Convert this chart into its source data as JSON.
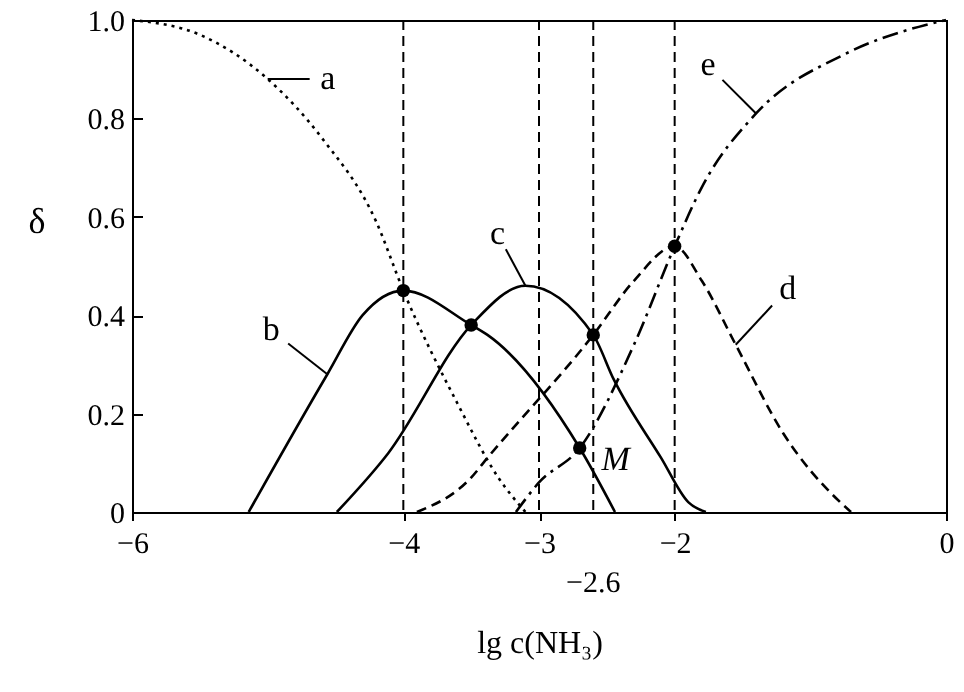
{
  "chart_data": {
    "type": "line",
    "xlabel": "lg c(NH₃)",
    "ylabel": "δ",
    "xlim": [
      -6,
      0
    ],
    "xticks": [
      -6,
      -4,
      -3,
      -2,
      0
    ],
    "ylim": [
      0,
      1
    ],
    "yticks": [
      0,
      0.2,
      0.4,
      0.6,
      0.8,
      {
        "value": 1,
        "label": "1.0"
      }
    ],
    "grid": false,
    "series": [
      {
        "color": "#000000",
        "line_style": "dotted",
        "marker": "none",
        "x": [
          -6,
          -5.5,
          -5,
          -4.6,
          -4.2,
          -4,
          -3.6,
          -3.3,
          -3.1
        ],
        "values": [
          1.0,
          0.97,
          0.88,
          0.76,
          0.59,
          0.45,
          0.22,
          0.07,
          0
        ]
      },
      {
        "color": "#000000",
        "line_style": "solid",
        "marker": "none",
        "x": [
          -5.14,
          -4.56,
          -4.3,
          -4,
          -3.5,
          -3.38,
          -2.7,
          -2.44
        ],
        "values": [
          0,
          0.28,
          0.4,
          0.45,
          0.38,
          0.36,
          0.13,
          0
        ]
      },
      {
        "color": "#000000",
        "line_style": "solid",
        "marker": "none",
        "x": [
          -4.49,
          -4.11,
          -3.5,
          -3.1,
          -2.6,
          -2.45,
          -2.1,
          -1.9,
          -1.77
        ],
        "values": [
          0,
          0.12,
          0.38,
          0.46,
          0.36,
          0.27,
          0.11,
          0.02,
          0
        ]
      },
      {
        "color": "#000000",
        "line_style": "dashed",
        "marker": "none",
        "x": [
          -3.9,
          -3.5,
          -3.38,
          -2.6,
          -2.3,
          -2,
          -1.8,
          -1.55,
          -1.2,
          -0.78,
          -0.7
        ],
        "values": [
          0,
          0.07,
          0.11,
          0.36,
          0.47,
          0.54,
          0.47,
          0.34,
          0.16,
          0.02,
          0
        ]
      },
      {
        "color": "#000000",
        "line_style": "dashdot",
        "marker": "none",
        "x": [
          -3.17,
          -3.0,
          -2.7,
          -2.3,
          -2,
          -1.8,
          -1.4,
          -0.75,
          -0.15,
          0
        ],
        "values": [
          0,
          0.06,
          0.13,
          0.34,
          0.54,
          0.66,
          0.81,
          0.93,
          0.99,
          1.0
        ]
      },
      {
        "type": "scatter",
        "color": "#000000",
        "marker": "circle",
        "x": [
          -4,
          -3.5,
          -2.6,
          -2.7,
          -2
        ],
        "values": [
          0.45,
          0.38,
          0.36,
          0.13,
          0.54
        ]
      }
    ],
    "ref_lines": [
      {
        "axis": "x",
        "value": -4,
        "line_style": "dashed",
        "color": "#000000"
      },
      {
        "axis": "x",
        "value": -3,
        "line_style": "dashed",
        "color": "#000000"
      },
      {
        "axis": "x",
        "value": -2.6,
        "line_style": "dashed",
        "color": "#000000",
        "label": "−2.6"
      },
      {
        "axis": "x",
        "value": -2,
        "line_style": "dashed",
        "color": "#000000"
      }
    ],
    "annotations": [
      {
        "text": "a",
        "x": -5.0,
        "y": 0.88
      },
      {
        "text": "b",
        "x": -4.56,
        "y": 0.28
      },
      {
        "text": "c",
        "x": -3.1,
        "y": 0.46
      },
      {
        "text": "d",
        "x": -1.55,
        "y": 0.34
      },
      {
        "text": "e",
        "x": -1.4,
        "y": 0.81
      },
      {
        "text": "M",
        "x": -2.7,
        "y": 0.13
      }
    ]
  }
}
